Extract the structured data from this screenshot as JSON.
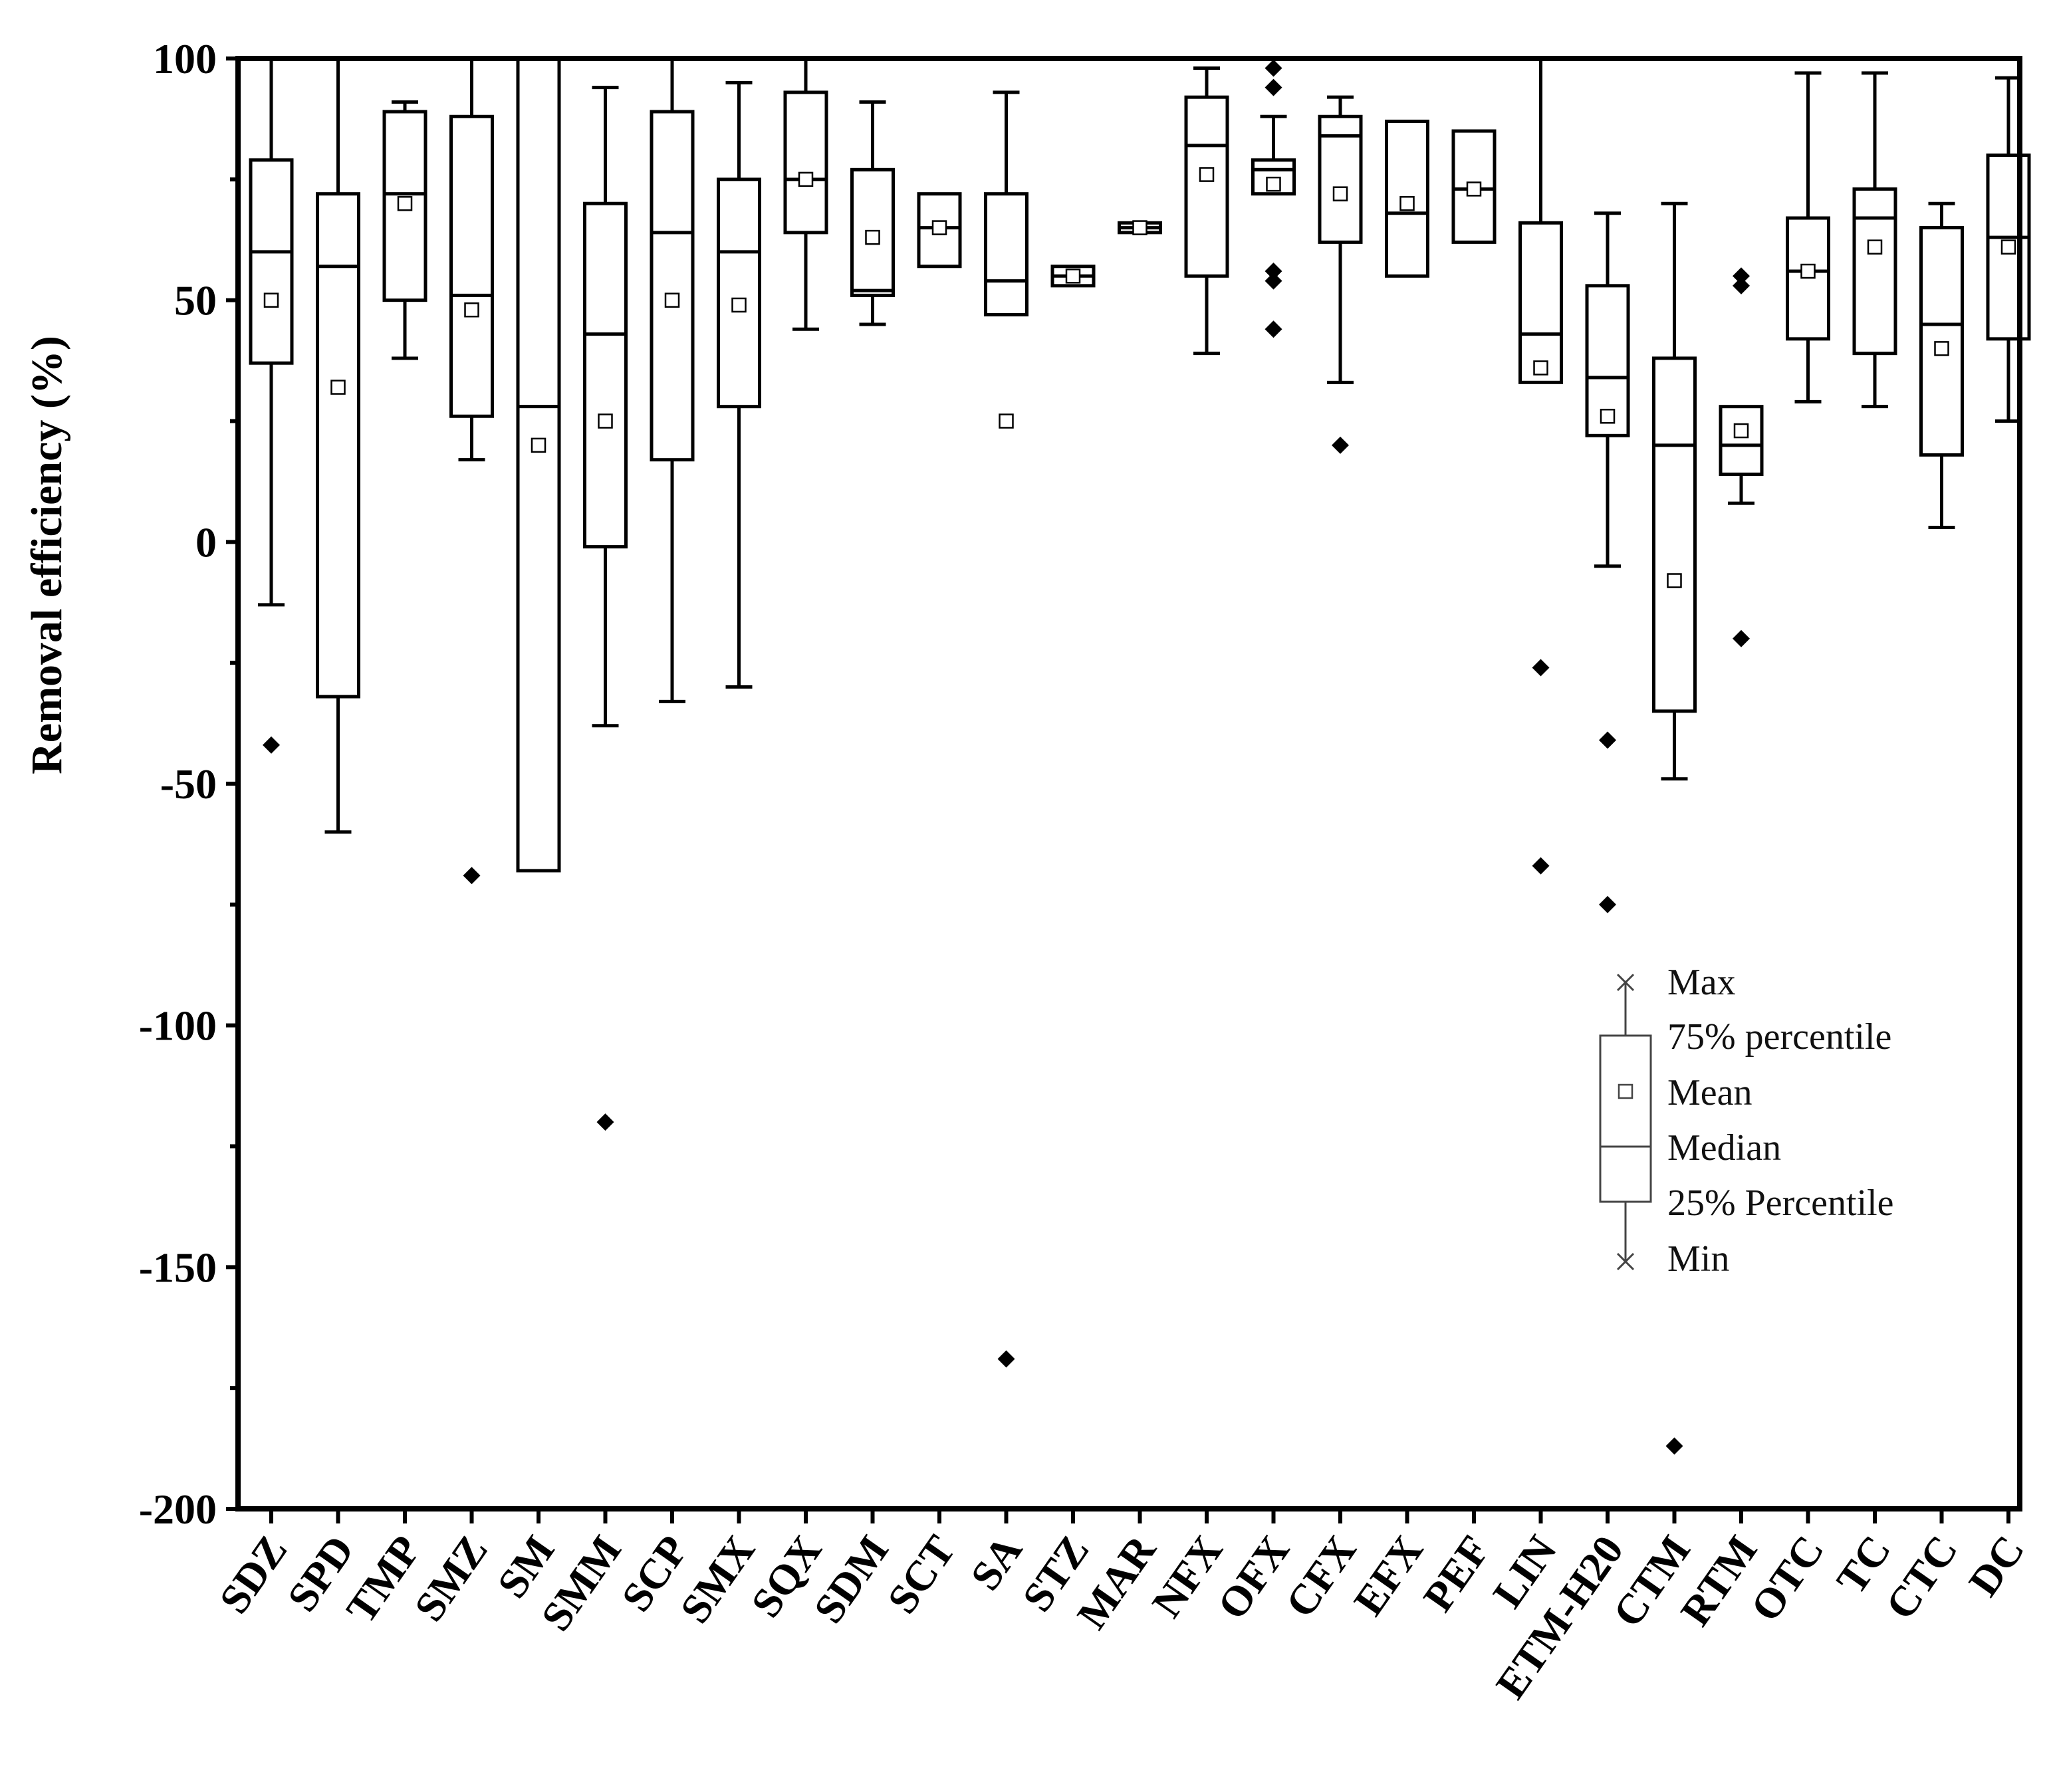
{
  "chart_data": {
    "type": "box",
    "ylabel": "Removal efficiency (%)",
    "xlabel": "",
    "ylim": [
      -200,
      100
    ],
    "yticks": [
      100,
      50,
      0,
      -50,
      -100,
      -150,
      -200
    ],
    "ytick_labels": [
      "100",
      "50",
      "0",
      "-50",
      "-100",
      "-150",
      "-200"
    ],
    "categories": [
      "SDZ",
      "SPD",
      "TMP",
      "SMZ",
      "SM",
      "SMM",
      "SCP",
      "SMX",
      "SQX",
      "SDM",
      "SCT",
      "SA",
      "STZ",
      "MAR",
      "NFX",
      "OFX",
      "CFX",
      "EFX",
      "PEF",
      "LIN",
      "ETM-H20",
      "CTM",
      "RTM",
      "OTC",
      "TC",
      "CTC",
      "DC"
    ],
    "boxes": [
      {
        "name": "SDZ",
        "min": -13,
        "q1": 37,
        "median": 60,
        "q3": 79,
        "max": 100,
        "mean": 50,
        "outliers": [
          -42
        ]
      },
      {
        "name": "SPD",
        "min": -60,
        "q1": -32,
        "median": 57,
        "q3": 72,
        "max": 100,
        "mean": 32,
        "outliers": []
      },
      {
        "name": "TMP",
        "min": 38,
        "q1": 50,
        "median": 72,
        "q3": 89,
        "max": 91,
        "mean": 70,
        "outliers": []
      },
      {
        "name": "SMZ",
        "min": 17,
        "q1": 26,
        "median": 51,
        "q3": 88,
        "max": 100,
        "mean": 48,
        "outliers": [
          -69
        ]
      },
      {
        "name": "SM",
        "min": -68,
        "q1": -68,
        "median": 28,
        "q3": 100,
        "max": 100,
        "mean": 20,
        "outliers": []
      },
      {
        "name": "SMM",
        "min": -38,
        "q1": -1,
        "median": 43,
        "q3": 70,
        "max": 94,
        "mean": 25,
        "outliers": [
          -120
        ]
      },
      {
        "name": "SCP",
        "min": -33,
        "q1": 17,
        "median": 64,
        "q3": 89,
        "max": 100,
        "mean": 50,
        "outliers": []
      },
      {
        "name": "SMX",
        "min": -30,
        "q1": 28,
        "median": 60,
        "q3": 75,
        "max": 95,
        "mean": 49,
        "outliers": []
      },
      {
        "name": "SQX",
        "min": 44,
        "q1": 64,
        "median": 75,
        "q3": 93,
        "max": 100,
        "mean": 75,
        "outliers": []
      },
      {
        "name": "SDM",
        "min": 45,
        "q1": 51,
        "median": 52,
        "q3": 77,
        "max": 91,
        "mean": 63,
        "outliers": []
      },
      {
        "name": "SCT",
        "min": 57,
        "q1": 57,
        "median": 65,
        "q3": 72,
        "max": 72,
        "mean": 65,
        "outliers": []
      },
      {
        "name": "SA",
        "min": 47,
        "q1": 47,
        "median": 54,
        "q3": 72,
        "max": 93,
        "mean": 25,
        "outliers": [
          -169
        ]
      },
      {
        "name": "STZ",
        "min": 53,
        "q1": 53,
        "median": 55,
        "q3": 57,
        "max": 57,
        "mean": 55,
        "outliers": []
      },
      {
        "name": "MAR",
        "min": 64,
        "q1": 64,
        "median": 65,
        "q3": 66,
        "max": 66,
        "mean": 65,
        "outliers": []
      },
      {
        "name": "NFX",
        "min": 39,
        "q1": 55,
        "median": 82,
        "q3": 92,
        "max": 98,
        "mean": 76,
        "outliers": []
      },
      {
        "name": "OFX",
        "min": 72,
        "q1": 72,
        "median": 77,
        "q3": 79,
        "max": 88,
        "mean": 74,
        "outliers": [
          98,
          94,
          56,
          54,
          44
        ]
      },
      {
        "name": "CFX",
        "min": 33,
        "q1": 62,
        "median": 84,
        "q3": 88,
        "max": 92,
        "mean": 72,
        "outliers": [
          20
        ]
      },
      {
        "name": "EFX",
        "min": 55,
        "q1": 55,
        "median": 68,
        "q3": 87,
        "max": 87,
        "mean": 70,
        "outliers": []
      },
      {
        "name": "PEF",
        "min": 62,
        "q1": 62,
        "median": 73,
        "q3": 85,
        "max": 85,
        "mean": 73,
        "outliers": []
      },
      {
        "name": "LIN",
        "min": 33,
        "q1": 33,
        "median": 43,
        "q3": 66,
        "max": 100,
        "mean": 36,
        "outliers": [
          -26,
          -67
        ]
      },
      {
        "name": "ETM-H20",
        "min": -5,
        "q1": 22,
        "median": 34,
        "q3": 53,
        "max": 68,
        "mean": 26,
        "outliers": [
          -41,
          -75
        ]
      },
      {
        "name": "CTM",
        "min": -49,
        "q1": -35,
        "median": 20,
        "q3": 38,
        "max": 70,
        "mean": -8,
        "outliers": [
          -187
        ]
      },
      {
        "name": "RTM",
        "min": 8,
        "q1": 14,
        "median": 20,
        "q3": 28,
        "max": 28,
        "mean": 23,
        "outliers": [
          55,
          53,
          -20
        ]
      },
      {
        "name": "OTC",
        "min": 29,
        "q1": 42,
        "median": 56,
        "q3": 67,
        "max": 97,
        "mean": 56,
        "outliers": []
      },
      {
        "name": "TC",
        "min": 28,
        "q1": 39,
        "median": 67,
        "q3": 73,
        "max": 97,
        "mean": 61,
        "outliers": []
      },
      {
        "name": "CTC",
        "min": 3,
        "q1": 18,
        "median": 45,
        "q3": 65,
        "max": 70,
        "mean": 40,
        "outliers": []
      },
      {
        "name": "DC",
        "min": 25,
        "q1": 42,
        "median": 63,
        "q3": 80,
        "max": 96,
        "mean": 61,
        "outliers": []
      }
    ],
    "legend": {
      "placement": "right-lower",
      "entries": [
        "Max",
        "75% percentile",
        "Mean",
        "Median",
        "25% Percentile",
        "Min"
      ]
    }
  }
}
